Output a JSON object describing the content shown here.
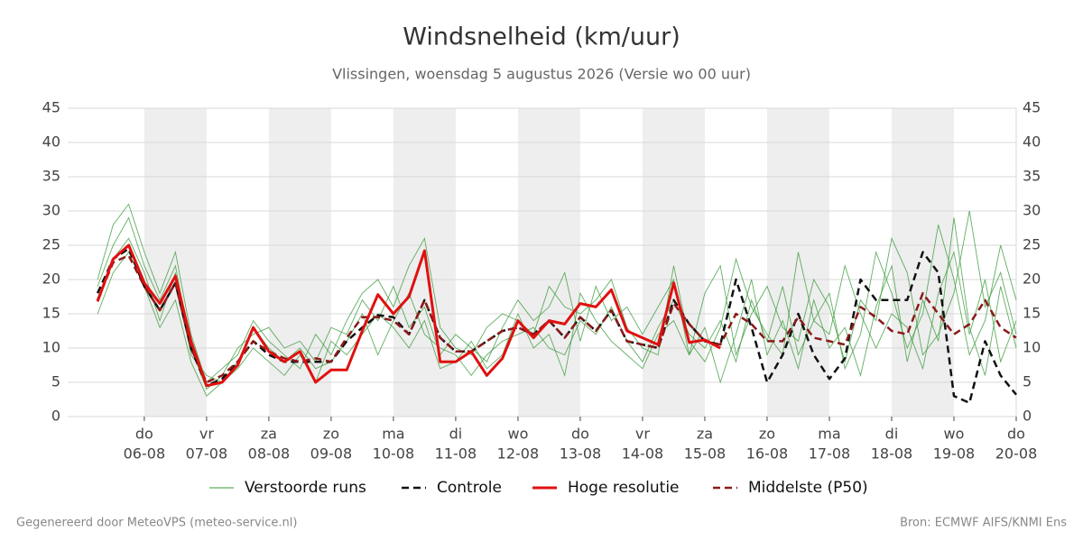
{
  "chart_data": {
    "type": "line",
    "title": "Windsnelheid (km/uur)",
    "subtitle": "Vlissingen, woensdag  5 augustus 2026 (Versie wo 00 uur)",
    "footer_left": "Gegenereerd door MeteoVPS (meteo-service.nl)",
    "footer_right": "Bron: ECMWF AIFS/KNMI Ens",
    "x": [
      5.25,
      5.5,
      5.75,
      6,
      6.25,
      6.5,
      6.75,
      7,
      7.25,
      7.5,
      7.75,
      8,
      8.25,
      8.5,
      8.75,
      9,
      9.25,
      9.5,
      9.75,
      10,
      10.25,
      10.5,
      10.75,
      11,
      11.25,
      11.5,
      11.75,
      12,
      12.25,
      12.5,
      12.75,
      13,
      13.25,
      13.5,
      13.75,
      14,
      14.25,
      14.5,
      14.75,
      15,
      15.25,
      15.5,
      15.75,
      16,
      16.25,
      16.5,
      16.75,
      17,
      17.25,
      17.5,
      17.75,
      18,
      18.25,
      18.5,
      18.75,
      19,
      19.25,
      19.5,
      19.75,
      20
    ],
    "xlim": [
      4.77,
      20
    ],
    "xticks": [
      {
        "value": 6,
        "day": "do",
        "label": "06-08"
      },
      {
        "value": 7,
        "day": "vr",
        "label": "07-08"
      },
      {
        "value": 8,
        "day": "za",
        "label": "08-08"
      },
      {
        "value": 9,
        "day": "zo",
        "label": "09-08"
      },
      {
        "value": 10,
        "day": "ma",
        "label": "10-08"
      },
      {
        "value": 11,
        "day": "di",
        "label": "11-08"
      },
      {
        "value": 12,
        "day": "wo",
        "label": "12-08"
      },
      {
        "value": 13,
        "day": "do",
        "label": "13-08"
      },
      {
        "value": 14,
        "day": "vr",
        "label": "14-08"
      },
      {
        "value": 15,
        "day": "za",
        "label": "15-08"
      },
      {
        "value": 16,
        "day": "zo",
        "label": "16-08"
      },
      {
        "value": 17,
        "day": "ma",
        "label": "17-08"
      },
      {
        "value": 18,
        "day": "di",
        "label": "18-08"
      },
      {
        "value": 19,
        "day": "wo",
        "label": "19-08"
      },
      {
        "value": 20,
        "day": "do",
        "label": "20-08"
      }
    ],
    "ylim": [
      0,
      45
    ],
    "yticks": [
      0,
      5,
      10,
      15,
      20,
      25,
      30,
      35,
      40,
      45
    ],
    "grid": true,
    "shade_alternate_days": true,
    "legend": "bottom",
    "series": [
      {
        "name": "Verstoorde runs",
        "color": "#3a9a3a",
        "members": [
          [
            20,
            28,
            31,
            24,
            18,
            24,
            12,
            5,
            7,
            9,
            14,
            11,
            9,
            7,
            12,
            9,
            14,
            18,
            20,
            16,
            22,
            26,
            13,
            10,
            9,
            13,
            15,
            14,
            12,
            19,
            16,
            15,
            17,
            20,
            13,
            10,
            9,
            22,
            11,
            8,
            13,
            23,
            16,
            12,
            9,
            24,
            14,
            18,
            7,
            12,
            24,
            18,
            10,
            15,
            28,
            20,
            9,
            14,
            25,
            17
          ],
          [
            15,
            21,
            24,
            19,
            13,
            17,
            8,
            3,
            5,
            7,
            10,
            8,
            6,
            9,
            5,
            11,
            9,
            12,
            15,
            13,
            10,
            14,
            7,
            8,
            11,
            7,
            9,
            15,
            10,
            12,
            6,
            18,
            14,
            11,
            9,
            7,
            12,
            14,
            9,
            13,
            5,
            12,
            20,
            9,
            14,
            7,
            17,
            10,
            13,
            6,
            16,
            22,
            8,
            17,
            11,
            29,
            13,
            6,
            19,
            10
          ],
          [
            19,
            25,
            29,
            22,
            17,
            22,
            10,
            4,
            6,
            10,
            12,
            13,
            10,
            11,
            8,
            13,
            12,
            17,
            14,
            19,
            13,
            16,
            9,
            12,
            10,
            8,
            13,
            17,
            14,
            16,
            21,
            11,
            19,
            14,
            16,
            12,
            16,
            20,
            9,
            18,
            22,
            9,
            15,
            19,
            13,
            11,
            20,
            16,
            8,
            17,
            14,
            26,
            21,
            9,
            12,
            18,
            30,
            16,
            21,
            12
          ],
          [
            17,
            23,
            26,
            21,
            14,
            21,
            9,
            6,
            5,
            8,
            13,
            10,
            8,
            10,
            7,
            8,
            11,
            15,
            9,
            14,
            18,
            12,
            10,
            9,
            6,
            9,
            11,
            12,
            13,
            10,
            9,
            14,
            12,
            16,
            11,
            8,
            13,
            17,
            12,
            10,
            14,
            8,
            17,
            11,
            19,
            9,
            14,
            12,
            22,
            15,
            10,
            15,
            13,
            7,
            18,
            24,
            12,
            20,
            8,
            14
          ]
        ]
      },
      {
        "name": "Controle",
        "color": "#111111",
        "dashed": true,
        "values": [
          18,
          23,
          24.5,
          19,
          15.5,
          19.5,
          10,
          4.5,
          5.5,
          8,
          11,
          9,
          8,
          8,
          8,
          8,
          11,
          13,
          14.8,
          14.5,
          12,
          17,
          11.5,
          9.5,
          9.5,
          11,
          12.5,
          13,
          12,
          14,
          11.5,
          14.5,
          12.5,
          15.5,
          11,
          10.5,
          10,
          17,
          13.5,
          11,
          10.5,
          20,
          13,
          5,
          9,
          15,
          9,
          5.5,
          8.5,
          20,
          17,
          17,
          17,
          24,
          21,
          3,
          2,
          11,
          6,
          3.2
        ]
      },
      {
        "name": "Hoge resolutie",
        "color": "#e01010",
        "values": [
          16.8,
          23,
          25,
          19.5,
          16.5,
          20.5,
          11,
          4.5,
          5,
          7.5,
          13,
          9.5,
          8,
          9.5,
          5,
          6.8,
          6.8,
          12.5,
          17.8,
          15,
          17.5,
          24.2,
          8,
          8,
          9.5,
          6,
          8.5,
          14,
          11.5,
          14,
          13.5,
          16.5,
          16,
          18.5,
          12.5,
          11.5,
          10.5,
          19.5,
          10.8,
          11.2,
          10,
          null,
          null,
          null,
          null,
          null,
          null,
          null,
          null,
          null,
          null,
          null,
          null,
          null,
          null,
          null,
          null,
          null,
          null,
          null
        ]
      },
      {
        "name": "Middelste (P50)",
        "color": "#8b1a1a",
        "dashed": true,
        "values": [
          17,
          22.5,
          23.5,
          19,
          15.5,
          19.5,
          10,
          5,
          6,
          8,
          11,
          9.5,
          8.5,
          8,
          8.5,
          8,
          11.5,
          14.5,
          14.5,
          14,
          12,
          17,
          11.5,
          9.5,
          9.5,
          11,
          12.5,
          13,
          12,
          14,
          11.5,
          14.5,
          12.5,
          15.5,
          11,
          10.5,
          10,
          16.5,
          13.5,
          11,
          10.5,
          15,
          13.5,
          11,
          11,
          14.5,
          11.5,
          11,
          10.5,
          16,
          14.5,
          12.5,
          12,
          18,
          15,
          12,
          13.5,
          17,
          13,
          11.5
        ]
      }
    ]
  }
}
